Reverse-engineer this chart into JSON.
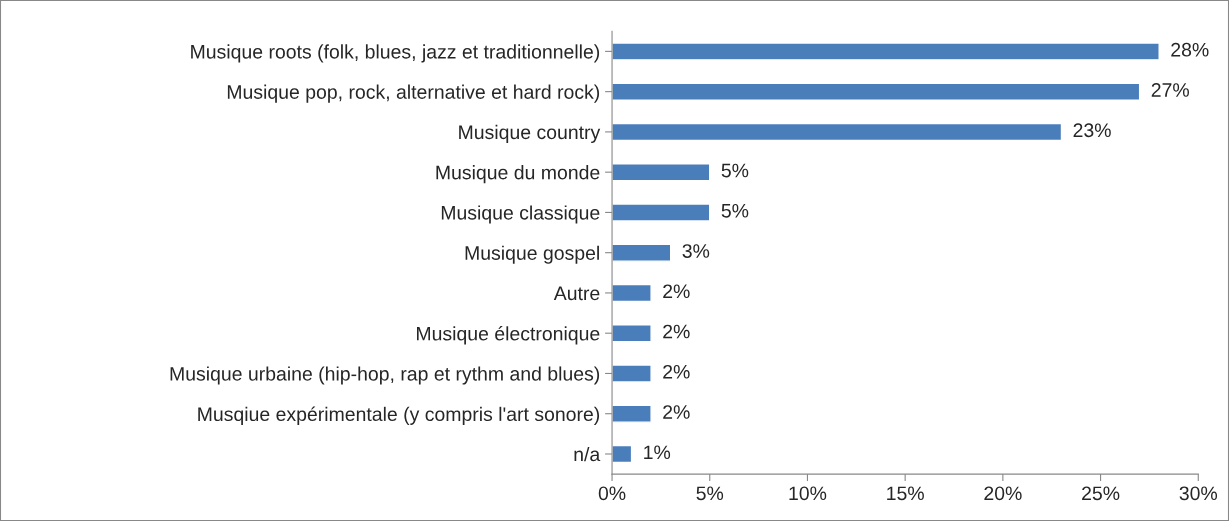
{
  "chart_data": {
    "type": "bar",
    "orientation": "horizontal",
    "categories": [
      "Musique roots (folk, blues, jazz et traditionnelle)",
      "Musique pop, rock, alternative et hard rock)",
      "Musique country",
      "Musique du monde",
      "Musique classique",
      "Musique gospel",
      "Autre",
      "Musique électronique",
      "Musique urbaine (hip-hop, rap et rythm and blues)",
      "Musqiue expérimentale (y compris l'art sonore)",
      "n/a"
    ],
    "values": [
      28,
      27,
      23,
      5,
      5,
      3,
      2,
      2,
      2,
      2,
      1
    ],
    "value_labels": [
      "28%",
      "27%",
      "23%",
      "5%",
      "5%",
      "3%",
      "2%",
      "2%",
      "2%",
      "2%",
      "1%"
    ],
    "color": "#4a7ebb",
    "xlim": [
      0,
      30
    ],
    "xticks": [
      {
        "value": 0,
        "label": "0%"
      },
      {
        "value": 5,
        "label": "5%"
      },
      {
        "value": 10,
        "label": "10%"
      },
      {
        "value": 15,
        "label": "15%"
      },
      {
        "value": 20,
        "label": "20%"
      },
      {
        "value": 25,
        "label": "25%"
      },
      {
        "value": 30,
        "label": "30%"
      }
    ],
    "grid": false
  }
}
